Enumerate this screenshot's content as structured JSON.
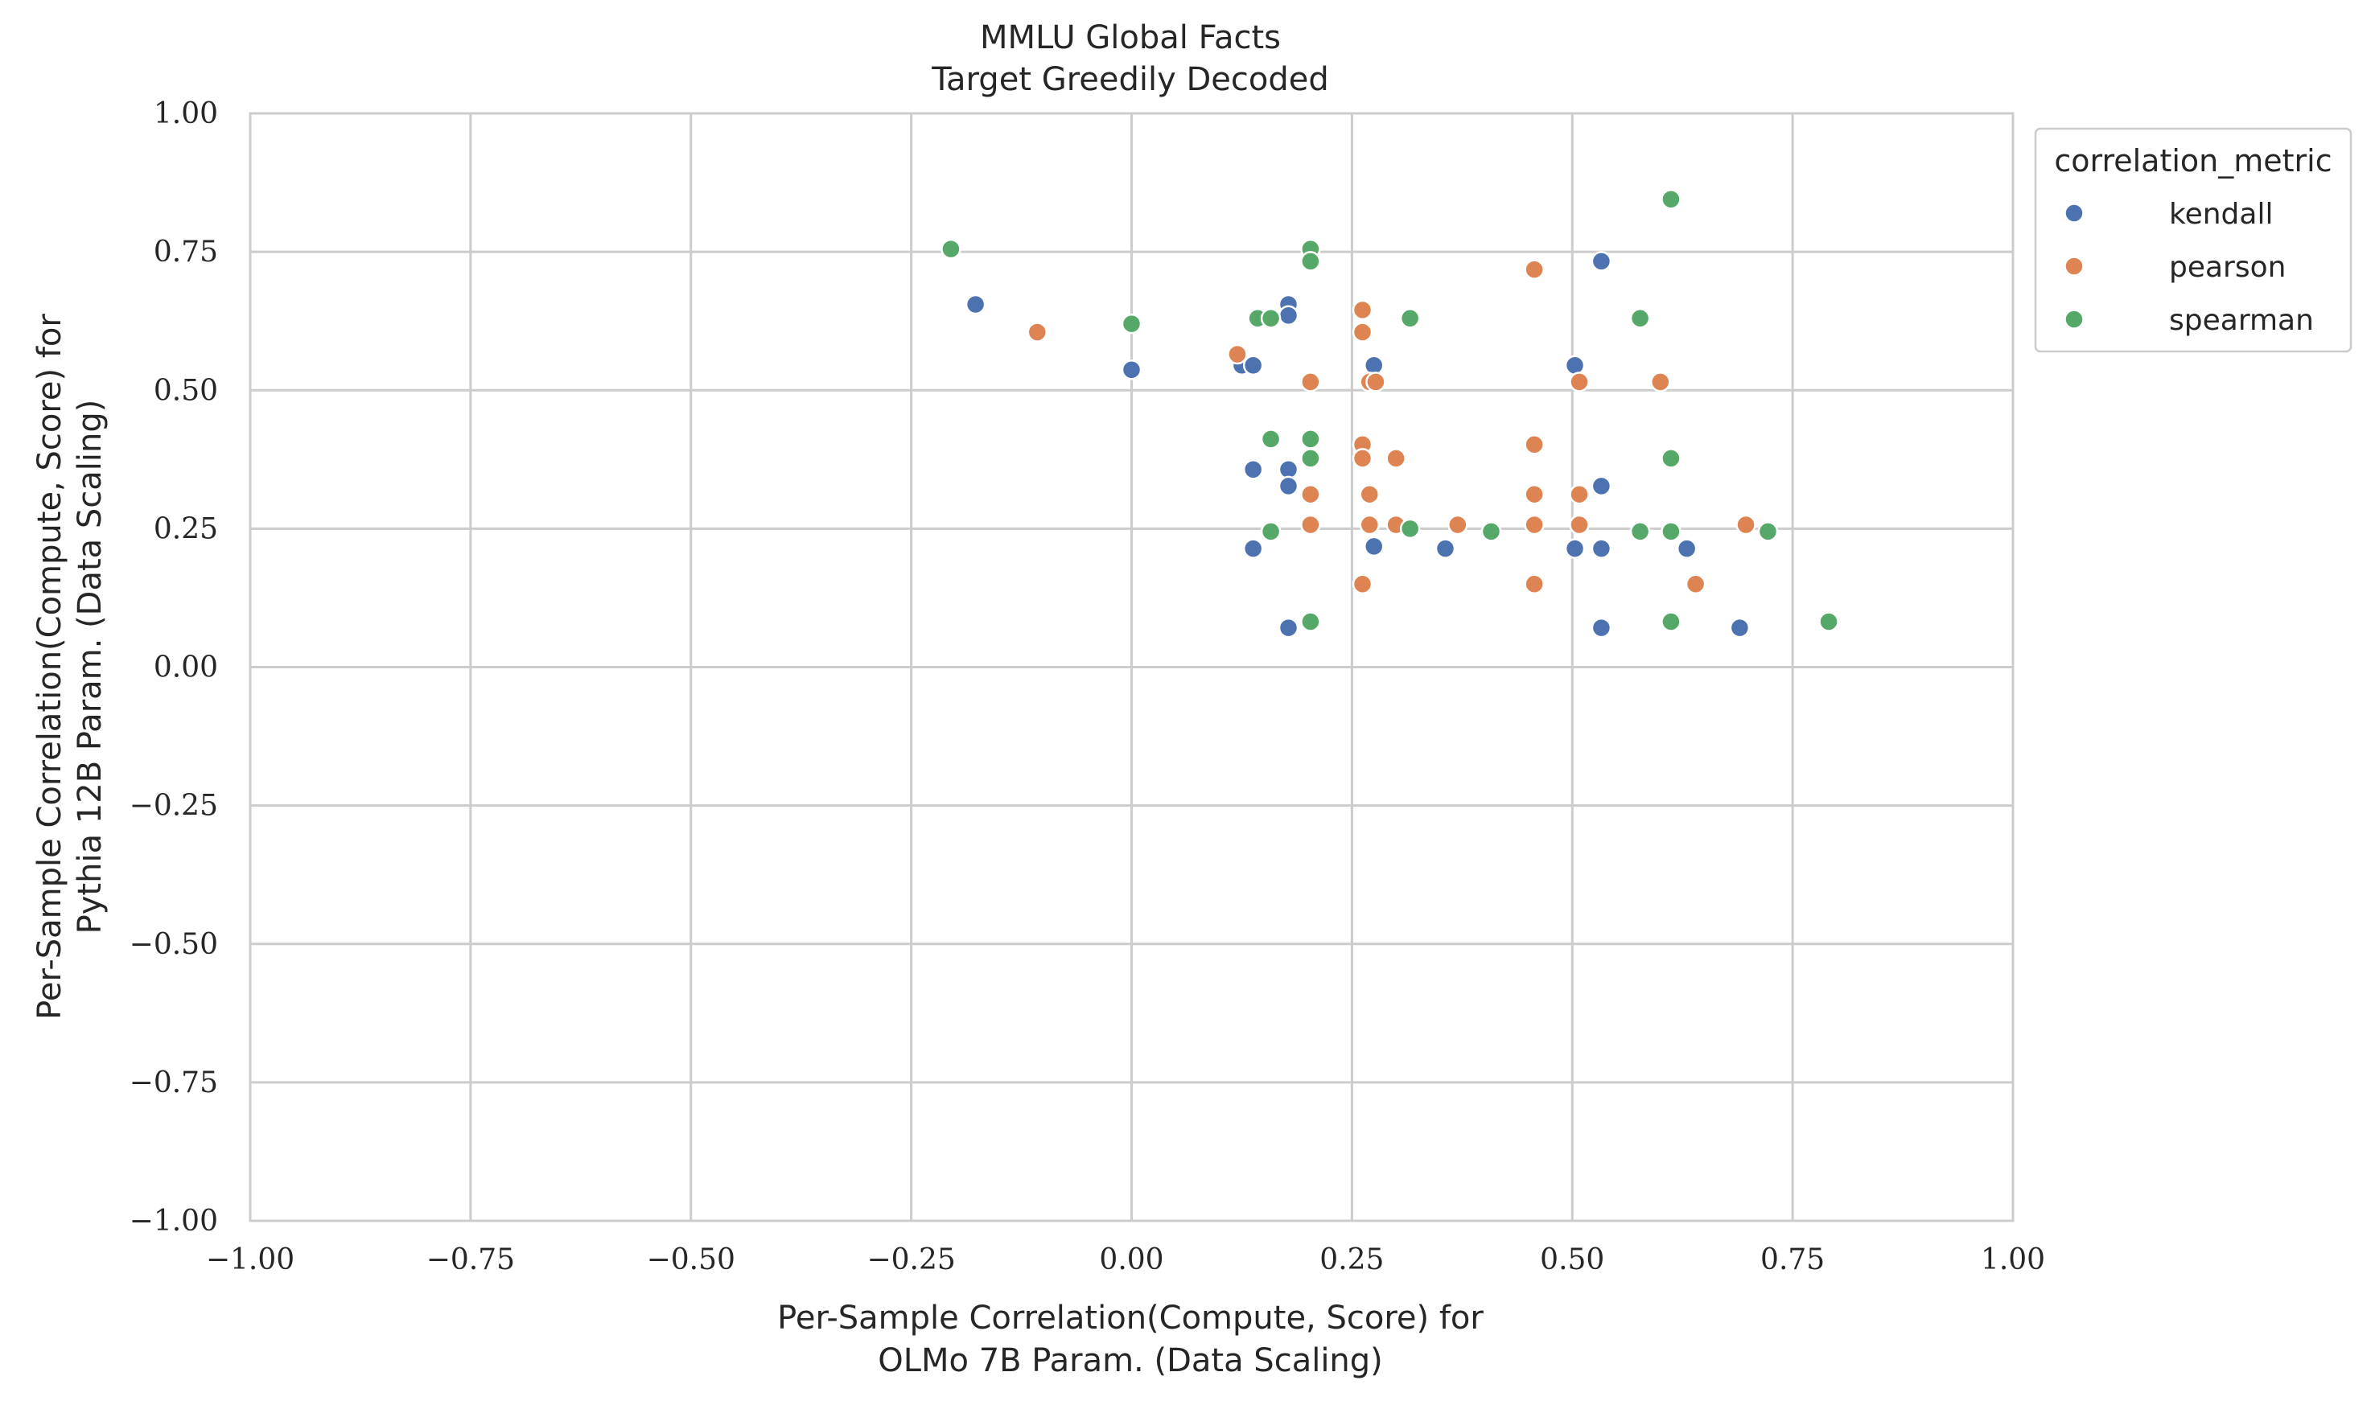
{
  "chart_data": {
    "type": "scatter",
    "title_lines": [
      "MMLU Global Facts",
      "Target Greedily Decoded"
    ],
    "xlabel_lines": [
      "Per-Sample Correlation(Compute, Score) for",
      "OLMo 7B Param. (Data Scaling)"
    ],
    "ylabel_lines": [
      "Per-Sample Correlation(Compute, Score) for",
      "Pythia 12B Param. (Data Scaling)"
    ],
    "xlim": [
      -1.0,
      1.0
    ],
    "ylim": [
      -1.0,
      1.0
    ],
    "xticks": [
      -1.0,
      -0.75,
      -0.5,
      -0.25,
      0.0,
      0.25,
      0.5,
      0.75,
      1.0
    ],
    "yticks": [
      -1.0,
      -0.75,
      -0.5,
      -0.25,
      0.0,
      0.25,
      0.5,
      0.75,
      1.0
    ],
    "xtick_labels": [
      "−1.00",
      "−0.75",
      "−0.50",
      "−0.25",
      "0.00",
      "0.25",
      "0.50",
      "0.75",
      "1.00"
    ],
    "ytick_labels": [
      "−1.00",
      "−0.75",
      "−0.50",
      "−0.25",
      "0.00",
      "0.25",
      "0.50",
      "0.75",
      "1.00"
    ],
    "grid": true,
    "legend": {
      "title": "correlation_metric",
      "placement": "outside-top-right"
    },
    "series": [
      {
        "name": "kendall",
        "color": "#4c72b0",
        "points": [
          [
            -0.177,
            0.655
          ],
          [
            0.0,
            0.537
          ],
          [
            0.125,
            0.545
          ],
          [
            0.138,
            0.545
          ],
          [
            0.178,
            0.655
          ],
          [
            0.178,
            0.635
          ],
          [
            0.138,
            0.357
          ],
          [
            0.178,
            0.357
          ],
          [
            0.178,
            0.327
          ],
          [
            0.138,
            0.214
          ],
          [
            0.178,
            0.071
          ],
          [
            0.275,
            0.545
          ],
          [
            0.275,
            0.218
          ],
          [
            0.356,
            0.214
          ],
          [
            0.503,
            0.545
          ],
          [
            0.503,
            0.214
          ],
          [
            0.533,
            0.733
          ],
          [
            0.533,
            0.327
          ],
          [
            0.533,
            0.214
          ],
          [
            0.533,
            0.071
          ],
          [
            0.63,
            0.214
          ],
          [
            0.69,
            0.071
          ]
        ]
      },
      {
        "name": "pearson",
        "color": "#dd8452",
        "points": [
          [
            -0.107,
            0.605
          ],
          [
            0.12,
            0.565
          ],
          [
            0.203,
            0.515
          ],
          [
            0.203,
            0.312
          ],
          [
            0.203,
            0.257
          ],
          [
            0.262,
            0.645
          ],
          [
            0.262,
            0.605
          ],
          [
            0.262,
            0.402
          ],
          [
            0.262,
            0.377
          ],
          [
            0.262,
            0.15
          ],
          [
            0.27,
            0.515
          ],
          [
            0.27,
            0.312
          ],
          [
            0.27,
            0.257
          ],
          [
            0.277,
            0.515
          ],
          [
            0.3,
            0.377
          ],
          [
            0.3,
            0.257
          ],
          [
            0.37,
            0.257
          ],
          [
            0.457,
            0.718
          ],
          [
            0.457,
            0.402
          ],
          [
            0.457,
            0.312
          ],
          [
            0.457,
            0.257
          ],
          [
            0.457,
            0.15
          ],
          [
            0.508,
            0.515
          ],
          [
            0.508,
            0.312
          ],
          [
            0.508,
            0.257
          ],
          [
            0.6,
            0.515
          ],
          [
            0.64,
            0.15
          ],
          [
            0.697,
            0.257
          ]
        ]
      },
      {
        "name": "spearman",
        "color": "#55a868",
        "points": [
          [
            -0.205,
            0.755
          ],
          [
            0.0,
            0.62
          ],
          [
            0.143,
            0.63
          ],
          [
            0.158,
            0.63
          ],
          [
            0.158,
            0.412
          ],
          [
            0.158,
            0.245
          ],
          [
            0.203,
            0.755
          ],
          [
            0.203,
            0.733
          ],
          [
            0.203,
            0.412
          ],
          [
            0.203,
            0.377
          ],
          [
            0.203,
            0.082
          ],
          [
            0.316,
            0.63
          ],
          [
            0.316,
            0.25
          ],
          [
            0.408,
            0.245
          ],
          [
            0.577,
            0.63
          ],
          [
            0.577,
            0.245
          ],
          [
            0.612,
            0.845
          ],
          [
            0.612,
            0.377
          ],
          [
            0.612,
            0.245
          ],
          [
            0.612,
            0.082
          ],
          [
            0.722,
            0.245
          ],
          [
            0.791,
            0.082
          ]
        ]
      }
    ]
  }
}
